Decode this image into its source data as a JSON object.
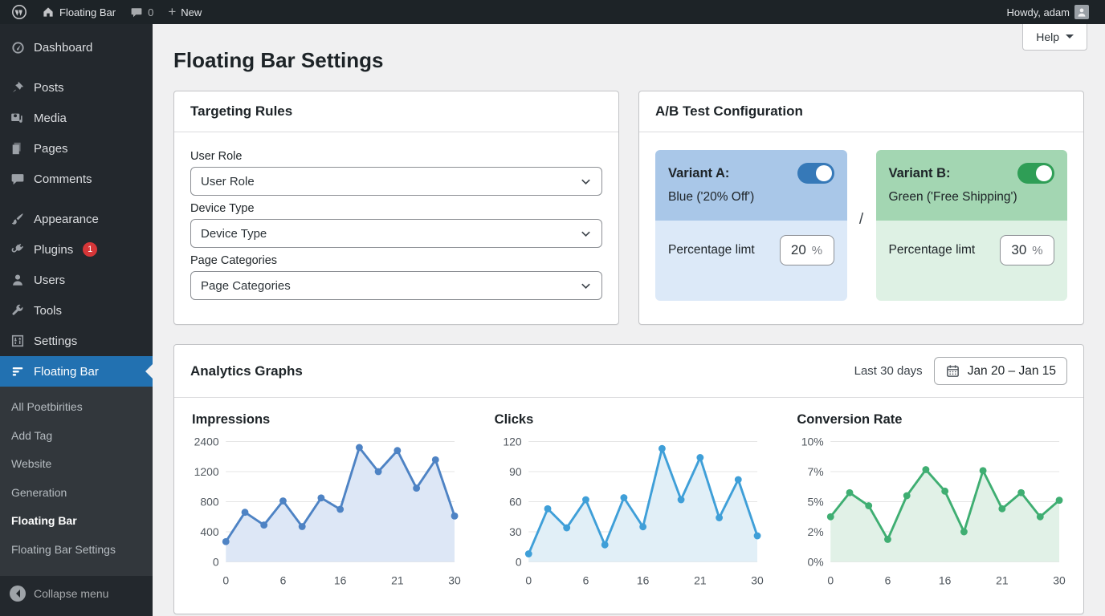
{
  "admin_bar": {
    "logo_icon": "wordpress-logo-icon",
    "site_icon": "home-icon",
    "site_name": "Floating Bar",
    "comments_icon": "comment-bubble-icon",
    "comments_count": "0",
    "new_icon": "plus-icon",
    "new_label": "New",
    "howdy": "Howdy, adam",
    "avatar_icon": "user-avatar-icon"
  },
  "sidebar": {
    "items": [
      {
        "label": "Dashboard",
        "icon": "dashboard-gauge-icon"
      },
      {
        "label": "Posts",
        "icon": "pushpin-icon"
      },
      {
        "label": "Media",
        "icon": "media-icon"
      },
      {
        "label": "Pages",
        "icon": "pages-icon"
      },
      {
        "label": "Comments",
        "icon": "comments-icon"
      },
      {
        "label": "Appearance",
        "icon": "paintbrush-icon"
      },
      {
        "label": "Plugins",
        "icon": "plugin-icon",
        "badge": "1"
      },
      {
        "label": "Users",
        "icon": "user-icon"
      },
      {
        "label": "Tools",
        "icon": "wrench-icon"
      },
      {
        "label": "Settings",
        "icon": "settings-sliders-icon"
      },
      {
        "label": "Floating Bar",
        "icon": "floating-bar-icon",
        "active": true
      }
    ],
    "submenu": [
      "All Poetbirities",
      "Add Tag",
      "Website",
      "Generation",
      "Floating Bar",
      "Floating Bar Settings"
    ],
    "current_submenu_index": 4,
    "collapse_label": "Collapse menu",
    "collapse_icon": "collapse-arrow-icon"
  },
  "page": {
    "title": "Floating Bar Settings",
    "help_label": "Help"
  },
  "panels": {
    "targeting": {
      "title": "Targeting Rules",
      "fields": [
        {
          "label": "User Role",
          "value": "User Role"
        },
        {
          "label": "Device Type",
          "value": "Device Type"
        },
        {
          "label": "Page Categories",
          "value": "Page Categories"
        }
      ]
    },
    "ab": {
      "title": "A/B Test Configuration",
      "divider": "/",
      "variants": [
        {
          "name": "Variant A:",
          "subtitle": "Blue ('20% Off')",
          "toggle_on": true,
          "pct_label": "Percentage limt",
          "pct_value": "20",
          "pct_unit": "%",
          "top_color": "#a9c7e8",
          "bottom_color": "#dce9f8",
          "toggle_color": "#3679b8"
        },
        {
          "name": "Variant B:",
          "subtitle": "Green ('Free Shipping')",
          "toggle_on": true,
          "pct_label": "Percentage limt",
          "pct_value": "30",
          "pct_unit": "%",
          "top_color": "#a3d6b2",
          "bottom_color": "#def1e4",
          "toggle_color": "#2f9e56"
        }
      ]
    },
    "analytics": {
      "title": "Analytics Graphs",
      "range_label": "Last 30 days",
      "date_icon": "calendar-icon",
      "date_range": "Jan 20 – Jan 15"
    }
  },
  "chart_data": [
    {
      "type": "line",
      "title": "Impressions",
      "values": [
        270,
        660,
        490,
        810,
        470,
        850,
        700,
        2160,
        1200,
        2040,
        980,
        1670,
        610
      ],
      "y_tick_values": [
        0,
        400,
        800,
        1200,
        2400
      ],
      "y_tick_labels": [
        "0",
        "400",
        "800",
        "1200",
        "2400"
      ],
      "x_tick_labels": [
        "0",
        "6",
        "16",
        "21",
        "30"
      ],
      "line_color": "#4e83c4",
      "fill_color": "#dde7f6",
      "grid": true,
      "markers": true
    },
    {
      "type": "line",
      "title": "Clicks",
      "values": [
        8,
        53,
        34,
        62,
        17,
        64,
        35,
        113,
        62,
        104,
        44,
        82,
        26
      ],
      "y_tick_values": [
        0,
        30,
        60,
        90,
        120
      ],
      "y_tick_labels": [
        "0",
        "30",
        "60",
        "90",
        "120"
      ],
      "x_tick_labels": [
        "0",
        "6",
        "16",
        "21",
        "30"
      ],
      "line_color": "#3f9fd8",
      "fill_color": "#e1eff7",
      "grid": true,
      "markers": true
    },
    {
      "type": "line",
      "title": "Conversion Rate",
      "values": [
        3.5,
        5.6,
        4.6,
        1.5,
        5.4,
        7.2,
        5.7,
        2.0,
        7.1,
        4.3,
        5.6,
        3.5,
        5.1
      ],
      "y_tick_values": [
        0,
        2,
        5,
        7,
        10
      ],
      "y_tick_labels": [
        "0%",
        "2%",
        "5%",
        "7%",
        "10%"
      ],
      "x_tick_labels": [
        "0",
        "6",
        "16",
        "21",
        "30"
      ],
      "line_color": "#3fae72",
      "fill_color": "#e1f1e7",
      "grid": true,
      "markers": true
    }
  ],
  "colors": {
    "admin_bar_bg": "#1d2327",
    "sidebar_bg": "#23282d",
    "submenu_bg": "#32373c",
    "active_accent": "#2271b1",
    "badge_red": "#d63638",
    "content_bg": "#f0f0f1"
  }
}
